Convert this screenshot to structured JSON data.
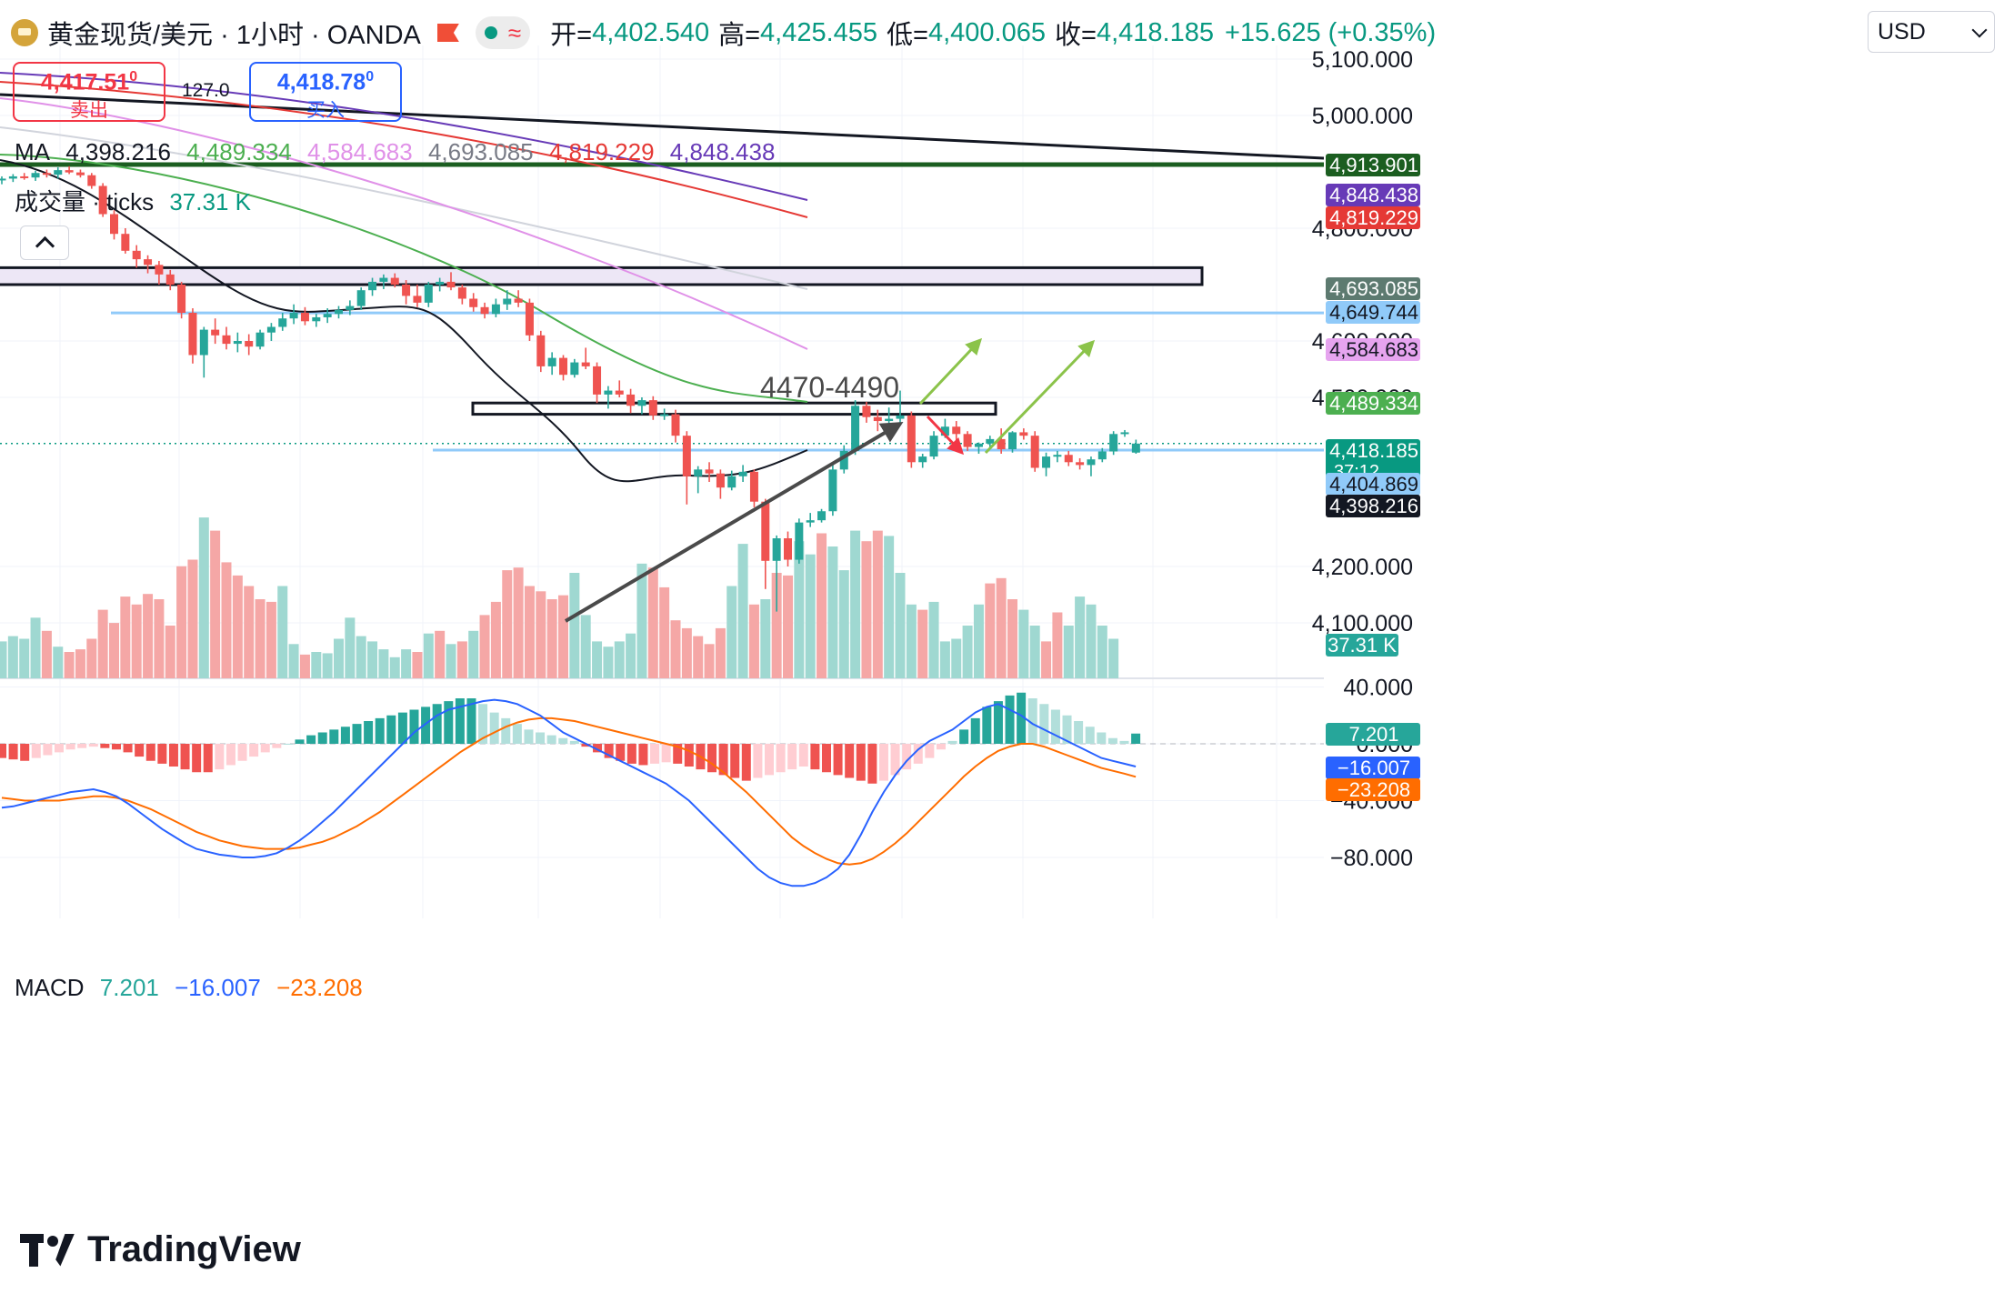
{
  "header": {
    "symbol": "黄金现货/美元 · 1小时 · OANDA",
    "open_label": "开=",
    "open": "4,402.540",
    "high_label": "高=",
    "high": "4,425.455",
    "low_label": "低=",
    "low": "4,400.065",
    "close_label": "收=",
    "close": "4,418.185",
    "change": "+15.625 (+0.35%)",
    "currency": "USD"
  },
  "trade": {
    "sell_price": "4,417.51",
    "sell_price_sup": "0",
    "sell_label": "卖出",
    "spread": "127.0",
    "buy_price": "4,418.78",
    "buy_price_sup": "0",
    "buy_label": "买入"
  },
  "legends": {
    "ma_label": "MA",
    "ma_values": [
      "4,398.216",
      "4,489.334",
      "4,584.683",
      "4,693.085",
      "4,819.229",
      "4,848.438"
    ],
    "volume_label": "成交量 · ticks",
    "volume_value": "37.31 K",
    "macd_label": "MACD",
    "macd_hist": "7.201",
    "macd_line": "−16.007",
    "macd_signal": "−23.208"
  },
  "annotation": "4470-4490",
  "colors": {
    "up": "#26a69a",
    "down": "#ef5350",
    "ma1": "#131722",
    "ma2": "#4caf50",
    "ma3": "#e091e8",
    "ma4": "#d1d4dc",
    "ma5": "#e53935",
    "ma6": "#673ab7",
    "macd_line": "#2962ff",
    "signal_line": "#ff6d00",
    "arrow_green": "#8bc34a",
    "arrow_red": "#f23645"
  },
  "brand": "TradingView",
  "chart_data": {
    "type": "candlestick",
    "price_axis_ticks": [
      "5,100.000",
      "5,000.000",
      "4,800.000",
      "4,600.000",
      "4,500.000",
      "4,200.000",
      "4,100.000"
    ],
    "macd_axis_ticks": [
      "40.000",
      "0.000",
      "−40.000",
      "−80.000"
    ],
    "price_labels": [
      {
        "value": "4,913.901",
        "bg": "#1b5e20"
      },
      {
        "value": "4,848.438",
        "bg": "#673ab7"
      },
      {
        "value": "4,819.229",
        "bg": "#e53935"
      },
      {
        "value": "4,693.085",
        "bg": "#5d7a70"
      },
      {
        "value": "4,649.744",
        "bg": "#90caf9"
      },
      {
        "value": "4,584.683",
        "bg": "#e6a4ef"
      },
      {
        "value": "4,489.334",
        "bg": "#4caf50"
      },
      {
        "value": "4,418.185",
        "bg": "#089981",
        "sub": "37:12"
      },
      {
        "value": "4,404.869",
        "bg": "#90caf9"
      },
      {
        "value": "4,398.216",
        "bg": "#131722"
      }
    ],
    "volume_label_value": "37.31 K",
    "macd_labels": [
      {
        "value": "7.201",
        "bg": "#26a69a"
      },
      {
        "value": "−16.007",
        "bg": "#2962ff"
      },
      {
        "value": "−23.208",
        "bg": "#ff6d00"
      }
    ],
    "horizontal_levels": [
      4913.901,
      4649.744,
      4404.869
    ],
    "zones": [
      {
        "from": 4700,
        "to": 4730
      },
      {
        "from": 4470,
        "to": 4490
      }
    ],
    "candles": [
      [
        4885,
        4892,
        4878,
        4888
      ],
      [
        4888,
        4896,
        4882,
        4892
      ],
      [
        4892,
        4898,
        4886,
        4890
      ],
      [
        4890,
        4902,
        4884,
        4898
      ],
      [
        4898,
        4904,
        4890,
        4895
      ],
      [
        4895,
        4908,
        4888,
        4903
      ],
      [
        4903,
        4910,
        4896,
        4899
      ],
      [
        4899,
        4904,
        4890,
        4894
      ],
      [
        4894,
        4898,
        4870,
        4875
      ],
      [
        4875,
        4880,
        4820,
        4825
      ],
      [
        4825,
        4832,
        4780,
        4790
      ],
      [
        4790,
        4800,
        4755,
        4760
      ],
      [
        4760,
        4770,
        4730,
        4745
      ],
      [
        4745,
        4752,
        4720,
        4735
      ],
      [
        4735,
        4742,
        4700,
        4718
      ],
      [
        4718,
        4726,
        4690,
        4700
      ],
      [
        4700,
        4705,
        4640,
        4650
      ],
      [
        4650,
        4658,
        4560,
        4575
      ],
      [
        4575,
        4625,
        4535,
        4620
      ],
      [
        4620,
        4640,
        4595,
        4610
      ],
      [
        4610,
        4625,
        4585,
        4595
      ],
      [
        4595,
        4615,
        4580,
        4600
      ],
      [
        4600,
        4612,
        4575,
        4590
      ],
      [
        4590,
        4620,
        4585,
        4615
      ],
      [
        4615,
        4632,
        4600,
        4625
      ],
      [
        4625,
        4650,
        4618,
        4640
      ],
      [
        4640,
        4665,
        4630,
        4650
      ],
      [
        4650,
        4660,
        4628,
        4635
      ],
      [
        4635,
        4648,
        4625,
        4642
      ],
      [
        4642,
        4658,
        4632,
        4648
      ],
      [
        4648,
        4662,
        4640,
        4655
      ],
      [
        4655,
        4672,
        4646,
        4662
      ],
      [
        4662,
        4695,
        4655,
        4690
      ],
      [
        4690,
        4712,
        4680,
        4705
      ],
      [
        4705,
        4718,
        4692,
        4712
      ],
      [
        4712,
        4720,
        4695,
        4700
      ],
      [
        4700,
        4708,
        4665,
        4680
      ],
      [
        4680,
        4700,
        4660,
        4668
      ],
      [
        4668,
        4705,
        4660,
        4700
      ],
      [
        4700,
        4712,
        4688,
        4705
      ],
      [
        4705,
        4722,
        4690,
        4695
      ],
      [
        4695,
        4700,
        4665,
        4675
      ],
      [
        4675,
        4685,
        4652,
        4660
      ],
      [
        4660,
        4668,
        4640,
        4648
      ],
      [
        4648,
        4675,
        4642,
        4665
      ],
      [
        4665,
        4690,
        4655,
        4675
      ],
      [
        4675,
        4690,
        4660,
        4668
      ],
      [
        4668,
        4675,
        4600,
        4610
      ],
      [
        4610,
        4618,
        4545,
        4555
      ],
      [
        4555,
        4580,
        4540,
        4570
      ],
      [
        4570,
        4575,
        4530,
        4540
      ],
      [
        4540,
        4568,
        4535,
        4562
      ],
      [
        4562,
        4588,
        4550,
        4555
      ],
      [
        4555,
        4562,
        4490,
        4505
      ],
      [
        4505,
        4520,
        4480,
        4512
      ],
      [
        4512,
        4530,
        4500,
        4505
      ],
      [
        4505,
        4515,
        4472,
        4485
      ],
      [
        4485,
        4500,
        4470,
        4495
      ],
      [
        4495,
        4502,
        4460,
        4468
      ],
      [
        4468,
        4480,
        4460,
        4470
      ],
      [
        4470,
        4478,
        4420,
        4432
      ],
      [
        4432,
        4440,
        4310,
        4360
      ],
      [
        4360,
        4378,
        4330,
        4372
      ],
      [
        4372,
        4385,
        4350,
        4365
      ],
      [
        4365,
        4372,
        4320,
        4340
      ],
      [
        4340,
        4370,
        4335,
        4360
      ],
      [
        4360,
        4380,
        4350,
        4368
      ],
      [
        4368,
        4372,
        4305,
        4315
      ],
      [
        4315,
        4320,
        4160,
        4210
      ],
      [
        4210,
        4255,
        4120,
        4250
      ],
      [
        4250,
        4262,
        4200,
        4212
      ],
      [
        4212,
        4285,
        4205,
        4278
      ],
      [
        4278,
        4295,
        4270,
        4282
      ],
      [
        4282,
        4302,
        4278,
        4298
      ],
      [
        4298,
        4380,
        4290,
        4372
      ],
      [
        4372,
        4415,
        4365,
        4405
      ],
      [
        4405,
        4495,
        4398,
        4485
      ],
      [
        4485,
        4492,
        4455,
        4465
      ],
      [
        4465,
        4478,
        4440,
        4458
      ],
      [
        4458,
        4482,
        4448,
        4462
      ],
      [
        4462,
        4512,
        4450,
        4468
      ],
      [
        4468,
        4475,
        4375,
        4385
      ],
      [
        4385,
        4400,
        4375,
        4395
      ],
      [
        4395,
        4440,
        4390,
        4432
      ],
      [
        4432,
        4462,
        4428,
        4448
      ],
      [
        4448,
        4458,
        4420,
        4435
      ],
      [
        4435,
        4440,
        4405,
        4412
      ],
      [
        4412,
        4420,
        4400,
        4418
      ],
      [
        4418,
        4432,
        4412,
        4426
      ],
      [
        4426,
        4445,
        4400,
        4408
      ],
      [
        4408,
        4440,
        4402,
        4438
      ],
      [
        4438,
        4445,
        4425,
        4432
      ],
      [
        4432,
        4440,
        4368,
        4375
      ],
      [
        4375,
        4402,
        4360,
        4395
      ],
      [
        4395,
        4405,
        4385,
        4398
      ],
      [
        4398,
        4405,
        4378,
        4385
      ],
      [
        4385,
        4392,
        4372,
        4380
      ],
      [
        4380,
        4395,
        4360,
        4390
      ],
      [
        4390,
        4410,
        4385,
        4404
      ],
      [
        4404,
        4440,
        4398,
        4435
      ],
      [
        4435,
        4442,
        4430,
        4438
      ],
      [
        4402,
        4425,
        4400,
        4418
      ]
    ],
    "volumes": [
      [
        28,
        1
      ],
      [
        32,
        1
      ],
      [
        30,
        1
      ],
      [
        46,
        1
      ],
      [
        36,
        0
      ],
      [
        24,
        1
      ],
      [
        20,
        0
      ],
      [
        22,
        0
      ],
      [
        30,
        0
      ],
      [
        52,
        0
      ],
      [
        42,
        0
      ],
      [
        62,
        0
      ],
      [
        56,
        0
      ],
      [
        64,
        0
      ],
      [
        60,
        0
      ],
      [
        40,
        0
      ],
      [
        85,
        0
      ],
      [
        90,
        0
      ],
      [
        122,
        1
      ],
      [
        112,
        0
      ],
      [
        88,
        0
      ],
      [
        78,
        0
      ],
      [
        70,
        0
      ],
      [
        60,
        0
      ],
      [
        58,
        0
      ],
      [
        70,
        1
      ],
      [
        26,
        1
      ],
      [
        18,
        0
      ],
      [
        20,
        1
      ],
      [
        19,
        1
      ],
      [
        30,
        1
      ],
      [
        46,
        1
      ],
      [
        32,
        1
      ],
      [
        28,
        1
      ],
      [
        22,
        1
      ],
      [
        16,
        1
      ],
      [
        22,
        1
      ],
      [
        20,
        0
      ],
      [
        34,
        1
      ],
      [
        36,
        0
      ],
      [
        26,
        1
      ],
      [
        28,
        0
      ],
      [
        36,
        1
      ],
      [
        48,
        0
      ],
      [
        58,
        0
      ],
      [
        82,
        0
      ],
      [
        84,
        0
      ],
      [
        70,
        0
      ],
      [
        66,
        0
      ],
      [
        60,
        0
      ],
      [
        63,
        0
      ],
      [
        80,
        1
      ],
      [
        48,
        1
      ],
      [
        28,
        1
      ],
      [
        24,
        1
      ],
      [
        28,
        1
      ],
      [
        34,
        1
      ],
      [
        87,
        1
      ],
      [
        84,
        0
      ],
      [
        69,
        0
      ],
      [
        44,
        0
      ],
      [
        38,
        0
      ],
      [
        32,
        0
      ],
      [
        26,
        0
      ],
      [
        38,
        0
      ],
      [
        70,
        1
      ],
      [
        102,
        1
      ],
      [
        56,
        0
      ],
      [
        60,
        1
      ],
      [
        80,
        0
      ],
      [
        78,
        0
      ],
      [
        104,
        1
      ],
      [
        94,
        1
      ],
      [
        110,
        0
      ],
      [
        100,
        1
      ],
      [
        82,
        1
      ],
      [
        112,
        1
      ],
      [
        104,
        0
      ],
      [
        112,
        0
      ],
      [
        108,
        1
      ],
      [
        80,
        1
      ],
      [
        56,
        1
      ],
      [
        52,
        0
      ],
      [
        58,
        1
      ],
      [
        28,
        1
      ],
      [
        30,
        1
      ],
      [
        40,
        1
      ],
      [
        56,
        1
      ],
      [
        72,
        0
      ],
      [
        76,
        0
      ],
      [
        60,
        0
      ],
      [
        52,
        1
      ],
      [
        40,
        1
      ],
      [
        28,
        0
      ],
      [
        50,
        0
      ],
      [
        40,
        1
      ],
      [
        62,
        1
      ],
      [
        56,
        1
      ],
      [
        40,
        1
      ],
      [
        30,
        1
      ]
    ],
    "macd_hist": [
      -10,
      -11,
      -12,
      -10,
      -8,
      -6,
      -4,
      -3,
      -2,
      -3,
      -4,
      -6,
      -9,
      -12,
      -14,
      -16,
      -18,
      -20,
      -20,
      -18,
      -15,
      -12,
      -9,
      -6,
      -3,
      0,
      3,
      6,
      8,
      10,
      12,
      14,
      16,
      18,
      20,
      22,
      24,
      26,
      28,
      30,
      32,
      32,
      28,
      22,
      18,
      14,
      10,
      8,
      6,
      4,
      2,
      -2,
      -6,
      -10,
      -12,
      -14,
      -15,
      -14,
      -13,
      -14,
      -16,
      -18,
      -20,
      -22,
      -24,
      -26,
      -24,
      -22,
      -20,
      -18,
      -16,
      -18,
      -20,
      -22,
      -24,
      -26,
      -28,
      -26,
      -22,
      -18,
      -14,
      -10,
      -4,
      2,
      10,
      18,
      26,
      30,
      34,
      36,
      32,
      28,
      24,
      20,
      16,
      12,
      8,
      4,
      2,
      7.2
    ],
    "macd_line": [
      -45,
      -44,
      -42,
      -40,
      -38,
      -36,
      -34,
      -33,
      -32,
      -34,
      -37,
      -42,
      -48,
      -54,
      -60,
      -65,
      -70,
      -74,
      -76,
      -78,
      -79,
      -80,
      -80,
      -79,
      -77,
      -73,
      -68,
      -62,
      -55,
      -48,
      -40,
      -32,
      -24,
      -16,
      -8,
      0,
      8,
      14,
      20,
      24,
      26,
      28,
      30,
      31,
      30,
      28,
      24,
      20,
      14,
      8,
      4,
      0,
      -4,
      -8,
      -12,
      -16,
      -20,
      -24,
      -28,
      -34,
      -40,
      -48,
      -56,
      -64,
      -72,
      -80,
      -88,
      -94,
      -98,
      -100,
      -100,
      -98,
      -94,
      -88,
      -78,
      -64,
      -48,
      -34,
      -22,
      -12,
      -4,
      2,
      6,
      10,
      16,
      22,
      26,
      28,
      24,
      20,
      14,
      10,
      6,
      2,
      -2,
      -6,
      -10,
      -12,
      -14,
      -16
    ],
    "signal_line": [
      -38,
      -39,
      -40,
      -40,
      -40,
      -40,
      -39,
      -38,
      -37,
      -37,
      -38,
      -40,
      -43,
      -46,
      -50,
      -54,
      -58,
      -62,
      -65,
      -68,
      -70,
      -72,
      -73,
      -74,
      -74,
      -74,
      -73,
      -71,
      -69,
      -66,
      -62,
      -58,
      -53,
      -48,
      -42,
      -36,
      -30,
      -24,
      -18,
      -12,
      -6,
      -1,
      4,
      8,
      12,
      15,
      17,
      18,
      18,
      17,
      16,
      14,
      12,
      10,
      8,
      6,
      4,
      2,
      0,
      -2,
      -5,
      -9,
      -14,
      -20,
      -27,
      -34,
      -42,
      -50,
      -58,
      -66,
      -72,
      -77,
      -81,
      -84,
      -85,
      -84,
      -81,
      -76,
      -70,
      -63,
      -55,
      -47,
      -39,
      -31,
      -23,
      -16,
      -10,
      -5,
      -2,
      0,
      0,
      -2,
      -5,
      -8,
      -11,
      -14,
      -17,
      -19,
      -21,
      -23.2
    ]
  }
}
